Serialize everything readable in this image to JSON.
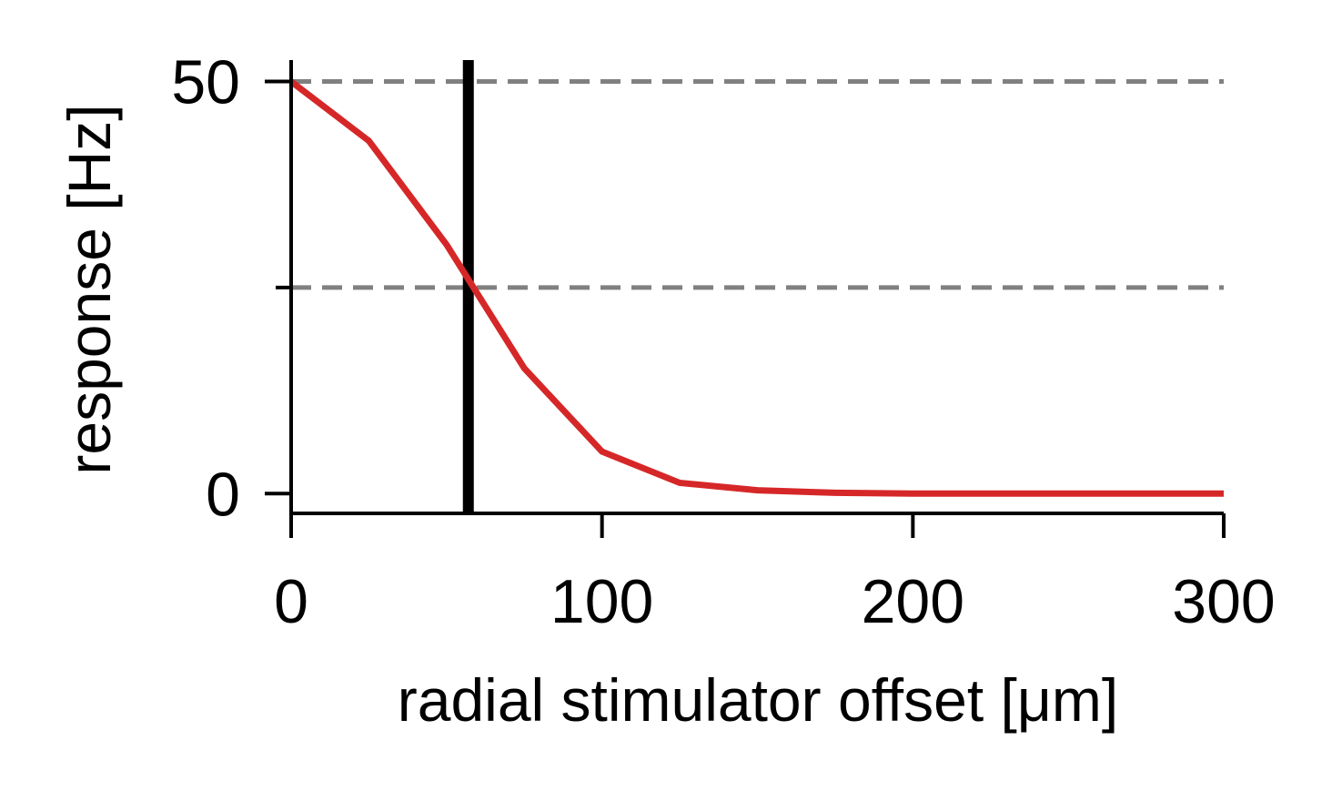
{
  "chart_data": {
    "type": "line",
    "title": "",
    "xlabel": "radial stimulator offset [μm]",
    "ylabel": "response [Hz]",
    "xlim": [
      0,
      300
    ],
    "ylim": [
      -2.4,
      52.6
    ],
    "x_ticks": [
      0,
      100,
      200,
      300
    ],
    "x_tick_labels": [
      "0",
      "100",
      "200",
      "300"
    ],
    "y_ticks": [
      0,
      25,
      50
    ],
    "y_tick_labels": [
      "0",
      "",
      "50"
    ],
    "grid": false,
    "legend": "none",
    "series": [
      {
        "color": "#d62728",
        "x": [
          0,
          25,
          50,
          75,
          100,
          125,
          150,
          175,
          200,
          225,
          250,
          275,
          300
        ],
        "y": [
          50,
          42.8,
          30.2,
          15.2,
          5.1,
          1.3,
          0.4,
          0.1,
          0,
          0,
          0,
          0,
          0
        ]
      }
    ],
    "reference_lines": [
      {
        "orientation": "horizontal",
        "value": 50,
        "style": "dashed",
        "color": "#808080"
      },
      {
        "orientation": "horizontal",
        "value": 25,
        "style": "dashed",
        "color": "#808080"
      },
      {
        "orientation": "vertical",
        "value": 57,
        "style": "solid",
        "color": "#000000"
      }
    ]
  }
}
